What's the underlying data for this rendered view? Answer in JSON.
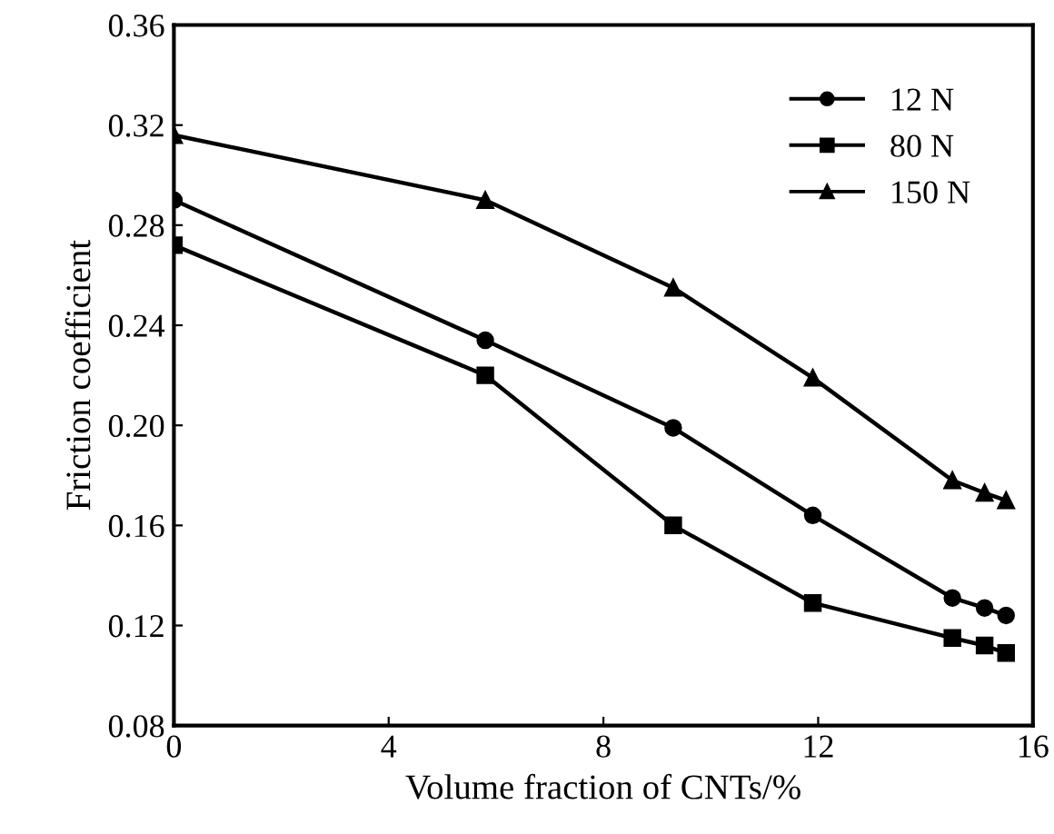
{
  "chart_data": {
    "type": "line",
    "xlabel": "Volume fraction of CNTs/%",
    "ylabel": "Friction coefficient",
    "xlim": [
      0,
      16
    ],
    "xticks": [
      0,
      4,
      8,
      12,
      16
    ],
    "ylim": [
      0.08,
      0.36
    ],
    "yticks": [
      {
        "value": 0.08,
        "label": "0.08"
      },
      {
        "value": 0.12,
        "label": "0.12"
      },
      {
        "value": 0.16,
        "label": "0.16"
      },
      {
        "value": 0.2,
        "label": "0.20"
      },
      {
        "value": 0.24,
        "label": "0.24"
      },
      {
        "value": 0.28,
        "label": "0.28"
      },
      {
        "value": 0.32,
        "label": "0.32"
      },
      {
        "value": 0.36,
        "label": "0.36"
      }
    ],
    "legend": "top right",
    "grid": false,
    "series": [
      {
        "name": "12 N",
        "color": "#000000",
        "marker": "circle",
        "x": [
          0,
          5.8,
          9.3,
          11.9,
          14.5,
          15.1,
          15.5
        ],
        "values": [
          0.29,
          0.234,
          0.199,
          0.164,
          0.131,
          0.127,
          0.124
        ]
      },
      {
        "name": "80 N",
        "color": "#000000",
        "marker": "square",
        "x": [
          0,
          5.8,
          9.3,
          11.9,
          14.5,
          15.1,
          15.5
        ],
        "values": [
          0.272,
          0.22,
          0.16,
          0.129,
          0.115,
          0.112,
          0.109
        ]
      },
      {
        "name": "150 N",
        "color": "#000000",
        "marker": "triangle",
        "x": [
          0,
          5.8,
          9.3,
          11.9,
          14.5,
          15.1,
          15.5
        ],
        "values": [
          0.316,
          0.29,
          0.255,
          0.219,
          0.178,
          0.173,
          0.17
        ]
      }
    ]
  }
}
